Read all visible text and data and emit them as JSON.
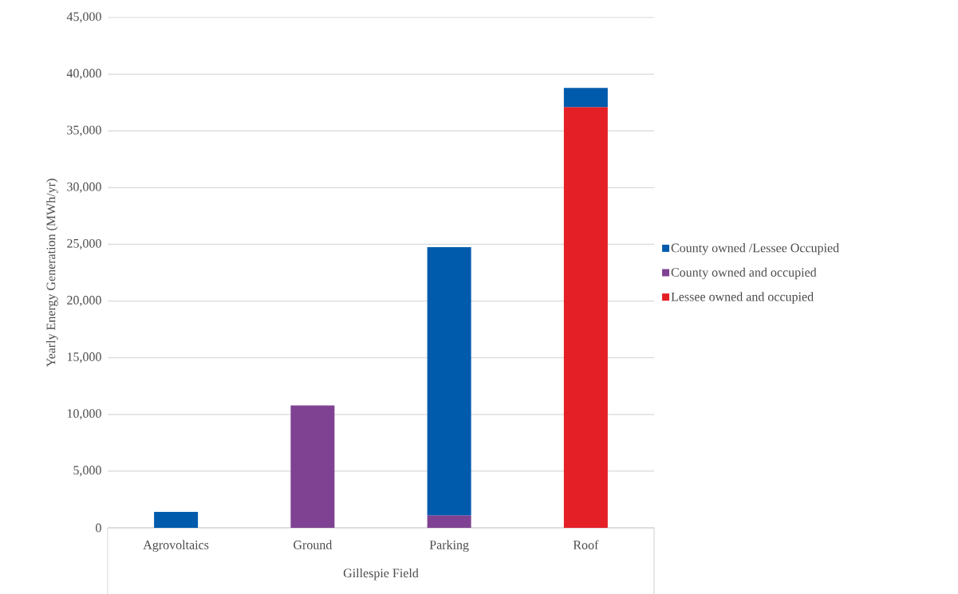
{
  "chart_data": {
    "type": "bar",
    "stacked": true,
    "xlabel": "Gillespie Field",
    "ylabel": "Yearly Energy Generation (MWh/yr)",
    "categories": [
      "Agrovoltaics",
      "Ground",
      "Parking",
      "Roof"
    ],
    "series": [
      {
        "name": "Lessee owned and occupied",
        "color": "#e41f26",
        "values": [
          null,
          null,
          null,
          37100
        ]
      },
      {
        "name": "County owned and occupied",
        "color": "#7f4293",
        "values": [
          null,
          10800,
          1100,
          null
        ]
      },
      {
        "name": "County owned /Lessee Occupied",
        "color": "#005bac",
        "values": [
          1400,
          null,
          23650,
          1700
        ]
      }
    ],
    "ylim": [
      0,
      45000
    ],
    "yticks": [
      0,
      {
        "value": 5000,
        "label": "5,000"
      },
      {
        "value": 10000,
        "label": "10,000"
      },
      {
        "value": 15000,
        "label": "15,000"
      },
      {
        "value": 20000,
        "label": "20,000"
      },
      {
        "value": 25000,
        "label": "25,000"
      },
      {
        "value": 30000,
        "label": "30,000"
      },
      {
        "value": 35000,
        "label": "35,000"
      },
      {
        "value": 40000,
        "label": "40,000"
      },
      {
        "value": 45000,
        "label": "45,000"
      }
    ],
    "grid": "y",
    "legend": "right"
  }
}
